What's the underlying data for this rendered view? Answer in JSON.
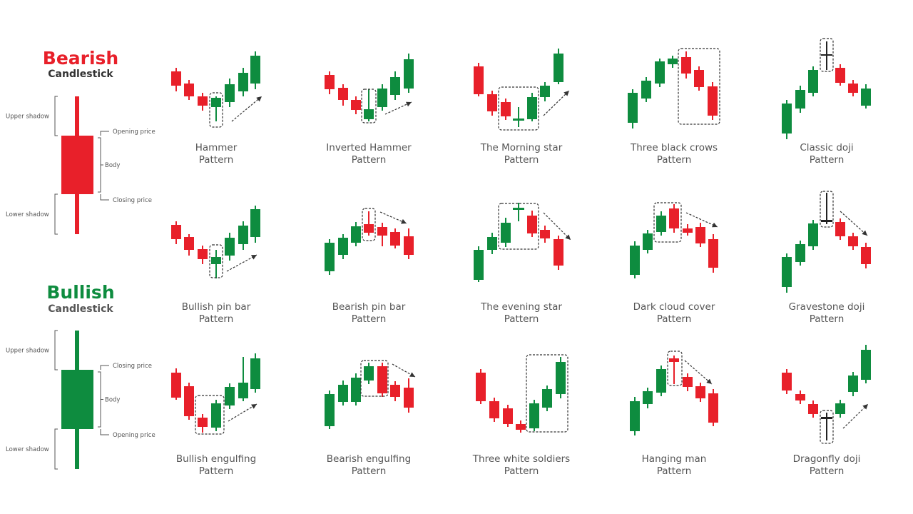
{
  "legend": {
    "bearish": {
      "title": "Bearish",
      "subtitle": "Candlestick",
      "upper_shadow": "Upper shadow",
      "top_price": "Opening price",
      "body": "Body",
      "bottom_price": "Closing price",
      "lower_shadow": "Lower shadow"
    },
    "bullish": {
      "title": "Bullish",
      "subtitle": "Candlestick",
      "upper_shadow": "Upper shadow",
      "top_price": "Closing price",
      "body": "Body",
      "bottom_price": "Opening price",
      "lower_shadow": "Lower shadow"
    }
  },
  "patterns": [
    {
      "lines": [
        "Hammer",
        "Pattern"
      ]
    },
    {
      "lines": [
        "Inverted Hammer",
        "Pattern"
      ]
    },
    {
      "lines": [
        "The Morning star",
        "Pattern"
      ]
    },
    {
      "lines": [
        "Three black crows",
        "Pattern"
      ]
    },
    {
      "lines": [
        "Classic doji",
        "Pattern"
      ]
    },
    {
      "lines": [
        "Bullish pin bar",
        "Pattern"
      ]
    },
    {
      "lines": [
        "Bearish pin bar",
        "Pattern"
      ]
    },
    {
      "lines": [
        "The evening star",
        "Pattern"
      ]
    },
    {
      "lines": [
        "Dark cloud cover",
        "Pattern"
      ]
    },
    {
      "lines": [
        "Gravestone doji",
        "Pattern"
      ]
    },
    {
      "lines": [
        "Bullish engulfing",
        "Pattern"
      ]
    },
    {
      "lines": [
        "Bearish engulfing",
        "Pattern"
      ]
    },
    {
      "lines": [
        "Three white soldiers",
        "Pattern"
      ]
    },
    {
      "lines": [
        "Hanging man",
        "Pattern"
      ]
    },
    {
      "lines": [
        "Dragonfly doji",
        "Pattern"
      ]
    }
  ]
}
